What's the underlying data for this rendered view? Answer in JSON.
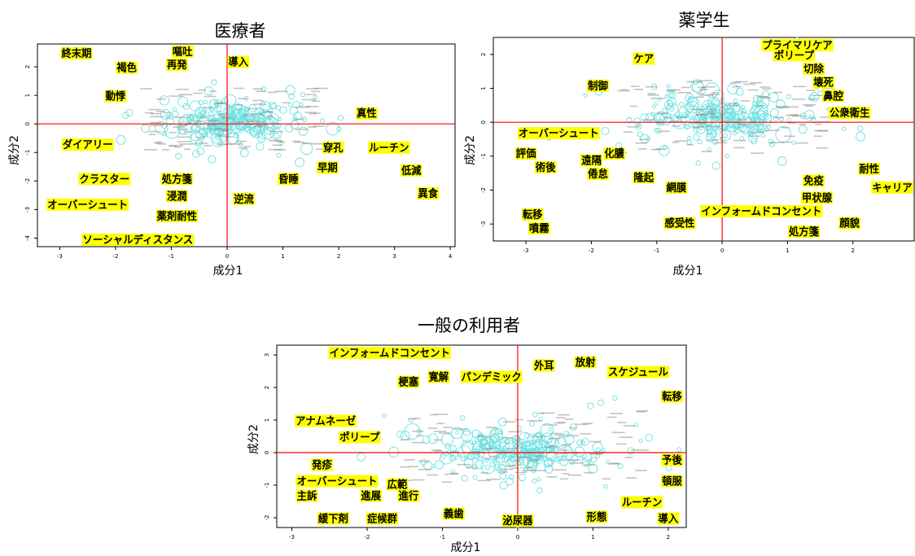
{
  "colors": {
    "bubble": "#6fe0e0",
    "cross_line": "#ff0000",
    "label_bg": "#ffff00",
    "label_text": "#000000",
    "frame": "#000000",
    "faint_text": "#888888"
  },
  "chart_data": [
    {
      "type": "scatter",
      "title": "医療者",
      "xlabel": "成分1",
      "ylabel": "成分2",
      "xlim": [
        -3.4,
        4.1
      ],
      "ylim": [
        -4.3,
        2.8
      ],
      "xticks": [
        -3,
        -2,
        -1,
        0,
        1,
        2,
        3,
        4
      ],
      "yticks": [
        -4,
        -3,
        -2,
        -1,
        0,
        1,
        2
      ],
      "labels": [
        {
          "text": "終末期",
          "x": -2.7,
          "y": 2.5
        },
        {
          "text": "嘔吐",
          "x": -0.8,
          "y": 2.6
        },
        {
          "text": "褐色",
          "x": -1.8,
          "y": 2.0
        },
        {
          "text": "再発",
          "x": -0.9,
          "y": 2.1
        },
        {
          "text": "導入",
          "x": 0.2,
          "y": 2.2
        },
        {
          "text": "動悸",
          "x": -2.0,
          "y": 1.0
        },
        {
          "text": "真性",
          "x": 2.5,
          "y": 0.4
        },
        {
          "text": "ダイアリー",
          "x": -2.5,
          "y": -0.7
        },
        {
          "text": "穿孔",
          "x": 1.9,
          "y": -0.8
        },
        {
          "text": "ルーチン",
          "x": 2.9,
          "y": -0.8
        },
        {
          "text": "早期",
          "x": 1.8,
          "y": -1.5
        },
        {
          "text": "昏睡",
          "x": 1.1,
          "y": -1.9
        },
        {
          "text": "低減",
          "x": 3.3,
          "y": -1.6
        },
        {
          "text": "クラスター",
          "x": -2.2,
          "y": -1.9
        },
        {
          "text": "処方箋",
          "x": -0.9,
          "y": -1.9
        },
        {
          "text": "浸潤",
          "x": -0.9,
          "y": -2.5
        },
        {
          "text": "オーバーシュート",
          "x": -2.5,
          "y": -2.8
        },
        {
          "text": "逆流",
          "x": 0.3,
          "y": -2.6
        },
        {
          "text": "異食",
          "x": 3.6,
          "y": -2.4
        },
        {
          "text": "薬剤耐性",
          "x": -0.9,
          "y": -3.2
        },
        {
          "text": "ソーシャルディスタンス",
          "x": -1.6,
          "y": -4.1
        }
      ]
    },
    {
      "type": "scatter",
      "title": "薬学生",
      "xlabel": "成分1",
      "ylabel": "成分2",
      "xlim": [
        -3.5,
        2.95
      ],
      "ylim": [
        -3.5,
        2.5
      ],
      "xticks": [
        -3,
        -2,
        -1,
        0,
        1,
        2
      ],
      "yticks": [
        -3,
        -2,
        -1,
        0,
        1,
        2
      ],
      "labels": [
        {
          "text": "プライマリケア",
          "x": 1.15,
          "y": 2.4
        },
        {
          "text": "ポリープ",
          "x": 1.1,
          "y": 2.0
        },
        {
          "text": "ケア",
          "x": -1.2,
          "y": 1.9
        },
        {
          "text": "切除",
          "x": 1.4,
          "y": 1.6
        },
        {
          "text": "壊死",
          "x": 1.55,
          "y": 1.2
        },
        {
          "text": "制御",
          "x": -1.9,
          "y": 1.1
        },
        {
          "text": "鼻腔",
          "x": 1.7,
          "y": 0.8
        },
        {
          "text": "公衆衛生",
          "x": 1.95,
          "y": 0.3
        },
        {
          "text": "オーバーシュート",
          "x": -2.5,
          "y": -0.3
        },
        {
          "text": "評価",
          "x": -3.0,
          "y": -0.9
        },
        {
          "text": "化膿",
          "x": -1.65,
          "y": -0.9
        },
        {
          "text": "術後",
          "x": -2.7,
          "y": -1.3
        },
        {
          "text": "遠隔",
          "x": -2.0,
          "y": -1.1
        },
        {
          "text": "倦怠",
          "x": -1.9,
          "y": -1.5
        },
        {
          "text": "隆起",
          "x": -1.2,
          "y": -1.6
        },
        {
          "text": "耐性",
          "x": 2.25,
          "y": -1.35
        },
        {
          "text": "免疫",
          "x": 1.4,
          "y": -1.7
        },
        {
          "text": "網膜",
          "x": -0.7,
          "y": -1.9
        },
        {
          "text": "キャリア",
          "x": 2.6,
          "y": -1.9
        },
        {
          "text": "甲状腺",
          "x": 1.45,
          "y": -2.2
        },
        {
          "text": "インフォームドコンセント",
          "x": 0.6,
          "y": -2.6
        },
        {
          "text": "転移",
          "x": -2.9,
          "y": -2.7
        },
        {
          "text": "感受性",
          "x": -0.65,
          "y": -2.95
        },
        {
          "text": "顔貌",
          "x": 1.95,
          "y": -2.95
        },
        {
          "text": "噴霧",
          "x": -2.8,
          "y": -3.1
        },
        {
          "text": "処方箋",
          "x": 1.25,
          "y": -3.2
        }
      ]
    },
    {
      "type": "scatter",
      "title": "一般の利用者",
      "xlabel": "成分1",
      "ylabel": "成分2",
      "xlim": [
        -3.2,
        2.25
      ],
      "ylim": [
        -2.3,
        3.3
      ],
      "xticks": [
        -3,
        -2,
        -1,
        0,
        1,
        2
      ],
      "yticks": [
        -2,
        -1,
        0,
        1,
        2,
        3
      ],
      "labels": [
        {
          "text": "インフォームドコンセント",
          "x": -1.7,
          "y": 3.1
        },
        {
          "text": "外耳",
          "x": 0.35,
          "y": 2.7
        },
        {
          "text": "放射",
          "x": 0.9,
          "y": 2.8
        },
        {
          "text": "スケジュール",
          "x": 1.6,
          "y": 2.5
        },
        {
          "text": "寛解",
          "x": -1.05,
          "y": 2.35
        },
        {
          "text": "パンデミック",
          "x": -0.35,
          "y": 2.35
        },
        {
          "text": "梗塞",
          "x": -1.45,
          "y": 2.2
        },
        {
          "text": "転移",
          "x": 2.05,
          "y": 1.75
        },
        {
          "text": "アナムネーゼ",
          "x": -2.55,
          "y": 1.0
        },
        {
          "text": "ポリープ",
          "x": -2.1,
          "y": 0.5
        },
        {
          "text": "予後",
          "x": 2.05,
          "y": -0.2
        },
        {
          "text": "発疹",
          "x": -2.6,
          "y": -0.35
        },
        {
          "text": "オーバーシュート",
          "x": -2.4,
          "y": -0.85
        },
        {
          "text": "広範",
          "x": -1.6,
          "y": -0.95
        },
        {
          "text": "頓服",
          "x": 2.05,
          "y": -0.85
        },
        {
          "text": "主訴",
          "x": -2.8,
          "y": -1.3
        },
        {
          "text": "進展",
          "x": -1.95,
          "y": -1.3
        },
        {
          "text": "進行",
          "x": -1.45,
          "y": -1.3
        },
        {
          "text": "ルーチン",
          "x": 1.65,
          "y": -1.5
        },
        {
          "text": "義歯",
          "x": -0.85,
          "y": -1.85
        },
        {
          "text": "緩下剤",
          "x": -2.45,
          "y": -2.0
        },
        {
          "text": "症候群",
          "x": -1.8,
          "y": -2.0
        },
        {
          "text": "形態",
          "x": 1.05,
          "y": -1.95
        },
        {
          "text": "導入",
          "x": 2.0,
          "y": -2.0
        },
        {
          "text": "泌尿器",
          "x": 0.0,
          "y": -2.2
        }
      ]
    }
  ]
}
